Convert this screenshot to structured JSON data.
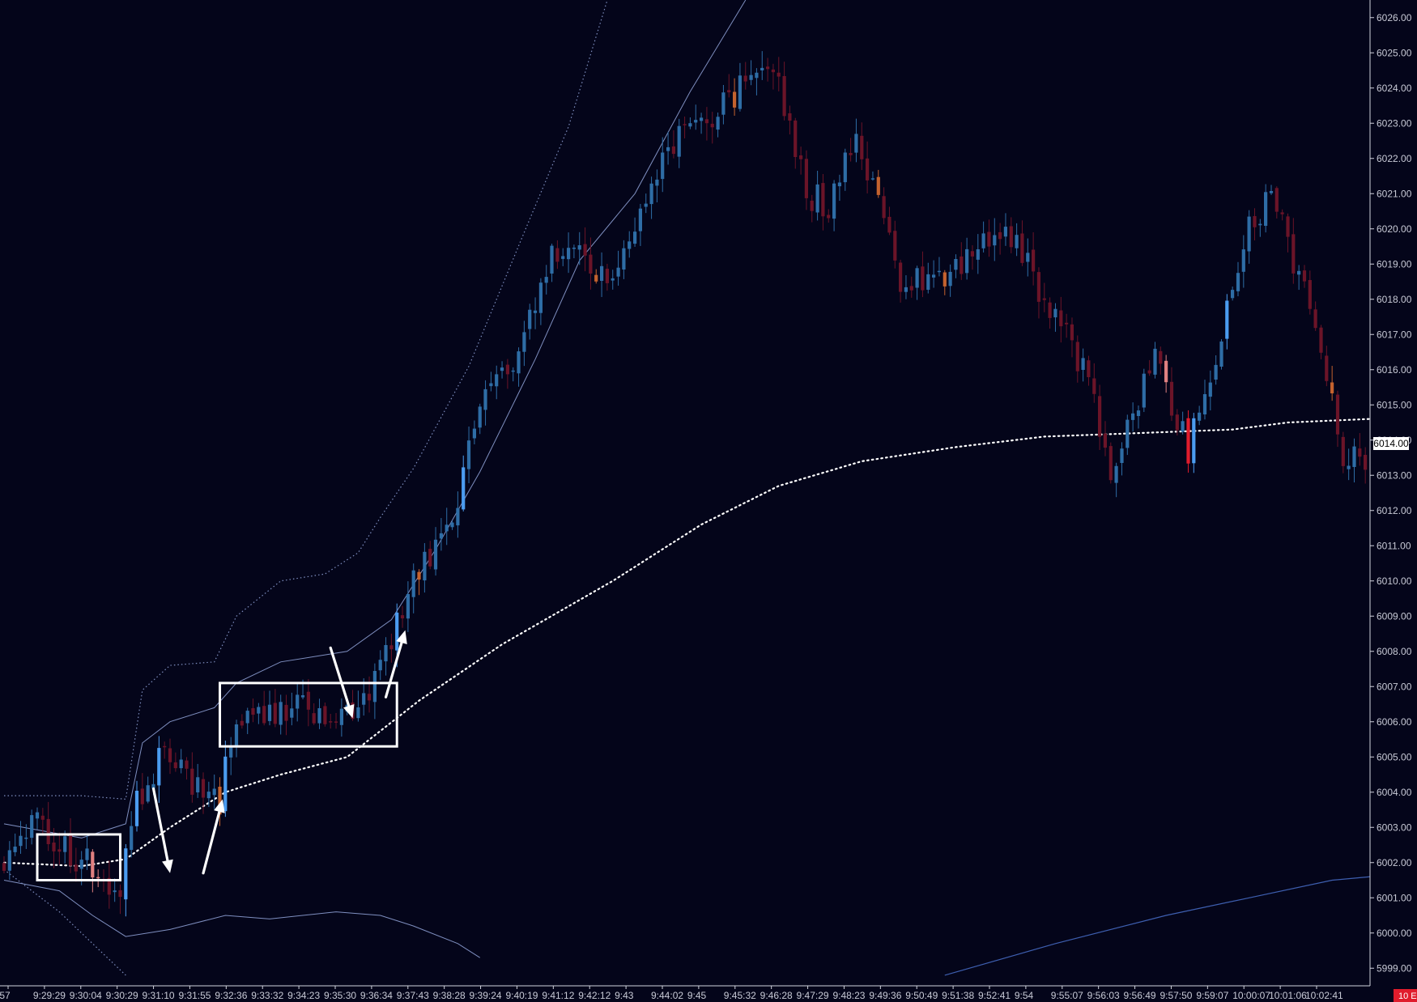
{
  "chart_data": {
    "type": "candlestick",
    "ylim": [
      5998.5,
      6026.5
    ],
    "y_ticks": [
      "5999.00",
      "6000.00",
      "6001.00",
      "6002.00",
      "6003.00",
      "6004.00",
      "6005.00",
      "6006.00",
      "6007.00",
      "6008.00",
      "6009.00",
      "6010.00",
      "6011.00",
      "6012.00",
      "6013.00",
      "6014.00",
      "6015.00",
      "6016.00",
      "6017.00",
      "6018.00",
      "6019.00",
      "6020.00",
      "6021.00",
      "6022.00",
      "6023.00",
      "6024.00",
      "6025.00",
      "6026.00"
    ],
    "x_ticks": [
      ":57",
      "9:29:29",
      "9:30:04",
      "9:30:29",
      "9:31:10",
      "9:31:55",
      "9:32:36",
      "9:33:32",
      "9:34:23",
      "9:35:30",
      "9:36:34",
      "9:37:43",
      "9:38:28",
      "9:39:24",
      "9:40:19",
      "9:41:12",
      "9:42:12",
      "9:43",
      "9:44:02",
      "9:45",
      "9:45:32",
      "9:46:28",
      "9:47:29",
      "9:48:23",
      "9:49:36",
      "9:50:49",
      "9:51:38",
      "9:52:41",
      "9:54",
      "9:55:07",
      "9:56:03",
      "9:56:49",
      "9:57:50",
      "9:59:07",
      "10:00:07",
      "10:01:06",
      "10:02:41"
    ],
    "last_price_label": "6014.00",
    "corner_label": "10 E",
    "colors": {
      "background": "#04051a",
      "up": "#2e6da6",
      "up_bright": "#4b9cf0",
      "down": "#6b1428",
      "down_bright": "#e01c2c",
      "down_orange": "#c4622e",
      "down_pink": "#e08080",
      "band": "#7f8fc0",
      "vwap": "#ffffff",
      "annotation": "#ffffff"
    },
    "candles": {
      "count": 247,
      "close_path": [
        [
          0,
          6002.0
        ],
        [
          6,
          6003.3
        ],
        [
          14,
          6002.2
        ],
        [
          22,
          6001.2
        ],
        [
          25,
          6003.7
        ],
        [
          30,
          6005.3
        ],
        [
          35,
          6004.2
        ],
        [
          40,
          6003.8
        ],
        [
          42,
          6005.6
        ],
        [
          46,
          6006.0
        ],
        [
          56,
          6006.5
        ],
        [
          60,
          6006.1
        ],
        [
          66,
          6006.6
        ],
        [
          70,
          6008.0
        ],
        [
          74,
          6009.7
        ],
        [
          82,
          6012.0
        ],
        [
          88,
          6015.1
        ],
        [
          94,
          6016.6
        ],
        [
          100,
          6019.2
        ],
        [
          104,
          6019.3
        ],
        [
          110,
          6018.4
        ],
        [
          114,
          6019.8
        ],
        [
          120,
          6022.2
        ],
        [
          128,
          6023.2
        ],
        [
          135,
          6024.1
        ],
        [
          140,
          6024.7
        ],
        [
          146,
          6021.0
        ],
        [
          150,
          6020.7
        ],
        [
          155,
          6022.8
        ],
        [
          163,
          6018.5
        ],
        [
          172,
          6018.8
        ],
        [
          182,
          6020.2
        ],
        [
          190,
          6017.7
        ],
        [
          197,
          6015.7
        ],
        [
          201,
          6013.3
        ],
        [
          209,
          6016.4
        ],
        [
          215,
          6013.7
        ],
        [
          218,
          6015.4
        ],
        [
          226,
          6019.9
        ],
        [
          230,
          6021.0
        ],
        [
          237,
          6017.8
        ],
        [
          243,
          6013.7
        ],
        [
          247,
          6013.2
        ]
      ]
    },
    "upper_band_dotted": [
      [
        0,
        6003.9
      ],
      [
        14,
        6003.9
      ],
      [
        22,
        6003.8
      ],
      [
        25,
        6006.9
      ],
      [
        30,
        6007.6
      ],
      [
        38,
        6007.7
      ],
      [
        42,
        6009.0
      ],
      [
        50,
        6010.0
      ],
      [
        58,
        6010.2
      ],
      [
        64,
        6010.8
      ],
      [
        68,
        6011.8
      ],
      [
        74,
        6013.2
      ],
      [
        84,
        6016.1
      ],
      [
        94,
        6019.9
      ],
      [
        102,
        6022.9
      ],
      [
        110,
        6027.0
      ]
    ],
    "upper_band_solid": [
      [
        0,
        6003.1
      ],
      [
        14,
        6002.7
      ],
      [
        22,
        6003.1
      ],
      [
        25,
        6005.4
      ],
      [
        30,
        6006.0
      ],
      [
        38,
        6006.4
      ],
      [
        42,
        6007.1
      ],
      [
        50,
        6007.7
      ],
      [
        62,
        6008.0
      ],
      [
        70,
        6008.9
      ],
      [
        78,
        6010.9
      ],
      [
        86,
        6013.1
      ],
      [
        96,
        6016.3
      ],
      [
        104,
        6019.1
      ],
      [
        114,
        6021.0
      ],
      [
        124,
        6023.9
      ],
      [
        134,
        6026.5
      ]
    ],
    "lower_band": [
      [
        0,
        6001.5
      ],
      [
        10,
        6001.2
      ],
      [
        16,
        6000.5
      ],
      [
        22,
        5999.9
      ],
      [
        30,
        6000.1
      ],
      [
        40,
        6000.5
      ],
      [
        48,
        6000.4
      ],
      [
        60,
        6000.6
      ],
      [
        68,
        6000.5
      ],
      [
        74,
        6000.2
      ],
      [
        82,
        5999.7
      ],
      [
        86,
        5999.3
      ]
    ],
    "lower_band_dotted": [
      [
        0,
        6001.8
      ],
      [
        10,
        6000.6
      ],
      [
        18,
        5999.4
      ],
      [
        22,
        5998.8
      ]
    ],
    "slow_band": [
      [
        170,
        5998.8
      ],
      [
        190,
        5999.7
      ],
      [
        210,
        6000.5
      ],
      [
        225,
        6001.0
      ],
      [
        240,
        6001.5
      ],
      [
        247,
        6001.6
      ]
    ],
    "vwap": [
      [
        0,
        6002.0
      ],
      [
        14,
        6001.9
      ],
      [
        22,
        6002.1
      ],
      [
        30,
        6003.0
      ],
      [
        40,
        6004.0
      ],
      [
        50,
        6004.5
      ],
      [
        62,
        6005.0
      ],
      [
        75,
        6006.6
      ],
      [
        90,
        6008.2
      ],
      [
        110,
        6010.0
      ],
      [
        126,
        6011.6
      ],
      [
        140,
        6012.7
      ],
      [
        155,
        6013.4
      ],
      [
        172,
        6013.8
      ],
      [
        188,
        6014.1
      ],
      [
        205,
        6014.2
      ],
      [
        222,
        6014.3
      ],
      [
        232,
        6014.5
      ],
      [
        247,
        6014.6
      ]
    ],
    "annotations": {
      "boxes": [
        [
          6,
          21,
          6001.5,
          6002.8
        ],
        [
          39,
          71,
          6005.3,
          6007.1
        ]
      ],
      "arrows": [
        [
          27,
          6004.1,
          30,
          6001.7
        ],
        [
          36,
          6001.7,
          39.5,
          6003.8
        ],
        [
          59,
          6008.1,
          63,
          6006.1
        ],
        [
          69,
          6006.7,
          72.5,
          6008.6
        ]
      ]
    }
  }
}
